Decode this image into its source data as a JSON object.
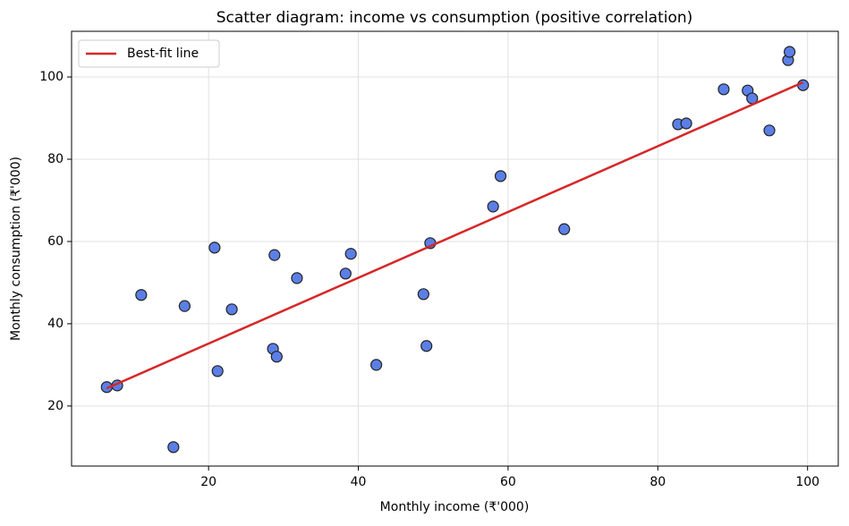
{
  "chart_data": {
    "type": "scatter",
    "title": "Scatter diagram: income vs consumption (positive correlation)",
    "x_label": "Monthly income (₹'000)",
    "y_label": "Monthly consumption (₹'000)",
    "xlim": [
      1.7,
      104.1
    ],
    "ylim": [
      5.4,
      111.1
    ],
    "xticks": [
      20,
      40,
      60,
      80,
      100
    ],
    "yticks": [
      20,
      40,
      60,
      80,
      100
    ],
    "grid": true,
    "legend": "upper left",
    "series": [
      {
        "type": "scatter",
        "color": "#5b7fe6",
        "x": [
          6.4,
          7.8,
          11.0,
          15.3,
          16.8,
          20.8,
          21.2,
          23.1,
          28.8,
          28.6,
          29.1,
          31.8,
          38.3,
          39.0,
          42.4,
          48.7,
          49.1,
          49.6,
          58.0,
          59.0,
          67.5,
          82.7,
          83.8,
          88.8,
          92.0,
          92.6,
          94.9,
          97.4,
          97.6,
          99.4
        ],
        "values": [
          24.6,
          25.0,
          47.0,
          10.0,
          44.3,
          58.5,
          28.5,
          43.5,
          56.7,
          33.9,
          32.0,
          51.1,
          52.2,
          57.0,
          30.0,
          47.2,
          34.6,
          59.6,
          68.5,
          75.9,
          63.0,
          88.5,
          88.7,
          97.0,
          96.7,
          94.8,
          87.0,
          104.1,
          106.1,
          98.0
        ]
      },
      {
        "type": "line",
        "name": "Best-fit line",
        "color": "#d62728",
        "x": [
          6.4,
          99.4
        ],
        "values": [
          24.3,
          98.7
        ]
      }
    ]
  }
}
